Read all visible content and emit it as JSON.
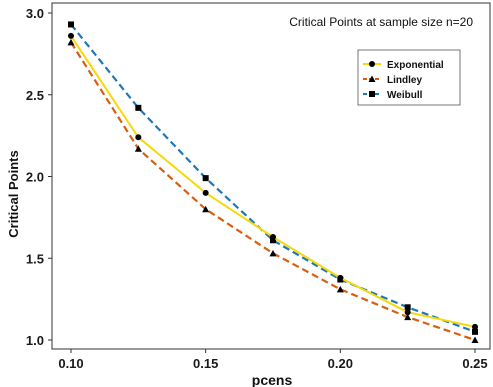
{
  "chart_data": {
    "type": "line",
    "annotation": "Critical Points at sample size n=20",
    "xlabel": "pcens",
    "ylabel": "Critical Points",
    "x": [
      0.1,
      0.125,
      0.15,
      0.175,
      0.2,
      0.225,
      0.25
    ],
    "x_tick_labels": [
      "0.10",
      "0.15",
      "0.20",
      "0.25"
    ],
    "y_tick_labels": [
      "1.0",
      "1.5",
      "2.0",
      "2.5",
      "3.0"
    ],
    "xlim": [
      0.1,
      0.25
    ],
    "ylim": [
      1.0,
      3.0
    ],
    "grid": false,
    "legend_position": "top-right",
    "series": [
      {
        "name": "Exponential",
        "values": [
          2.86,
          2.24,
          1.9,
          1.63,
          1.38,
          1.17,
          1.08
        ],
        "color": "#f5d90a",
        "line_style": "solid",
        "marker": "circle"
      },
      {
        "name": "Lindley",
        "values": [
          2.82,
          2.17,
          1.8,
          1.53,
          1.31,
          1.14,
          1.0
        ],
        "color": "#d95f0e",
        "line_style": "dashed",
        "marker": "triangle"
      },
      {
        "name": "Weibull",
        "values": [
          2.93,
          2.42,
          1.99,
          1.61,
          1.37,
          1.2,
          1.05
        ],
        "color": "#1f78b4",
        "line_style": "dashed",
        "marker": "square"
      }
    ]
  }
}
